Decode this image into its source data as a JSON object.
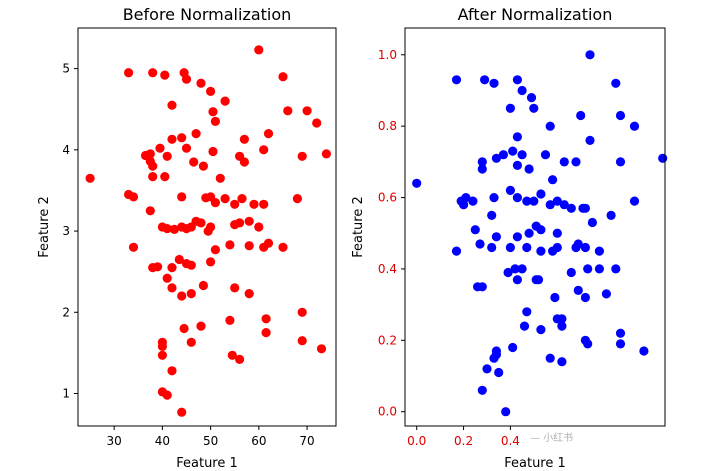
{
  "chart_data": [
    {
      "type": "scatter",
      "title": "Before Normalization",
      "xlabel": "Feature 1",
      "ylabel": "Feature 2",
      "xlim": [
        22.5,
        76.0
      ],
      "ylim": [
        0.6,
        5.5
      ],
      "xticks": [
        30,
        40,
        50,
        60,
        70
      ],
      "yticks": [
        1,
        2,
        3,
        4,
        5
      ],
      "color": "#ff0000",
      "tick_color": "#000000",
      "x": [
        33.0,
        38.0,
        40.5,
        44.5,
        45.0,
        48.0,
        50.0,
        50.5,
        60.0,
        65.0,
        42.0,
        47.0,
        51.0,
        57.0,
        66.0,
        70.0,
        72.0,
        53.0,
        62.0,
        44.0,
        48.5,
        42.0,
        74.0,
        36.5,
        37.5,
        37.5,
        38.0,
        39.5,
        41.0,
        45.0,
        46.5,
        50.5,
        52.0,
        56.0,
        57.0,
        61.0,
        69.0,
        25.0,
        38.0,
        40.5,
        44.0,
        49.0,
        50.0,
        51.0,
        53.0,
        55.0,
        56.5,
        59.0,
        61.0,
        68.0,
        33.0,
        34.0,
        37.5,
        40.0,
        41.0,
        42.5,
        44.0,
        45.0,
        46.0,
        47.0,
        48.0,
        49.5,
        50.0,
        55.0,
        56.0,
        58.0,
        60.0,
        62.0,
        65.0,
        34.0,
        38.0,
        39.0,
        42.0,
        43.5,
        45.0,
        46.0,
        50.0,
        51.0,
        54.0,
        58.0,
        61.0,
        41.0,
        42.0,
        44.0,
        46.0,
        48.5,
        55.0,
        58.0,
        61.5,
        69.0,
        40.0,
        44.5,
        48.0,
        54.0,
        61.5,
        46.0,
        40.0,
        40.0,
        69.0,
        73.0,
        54.5,
        56.0,
        40.0,
        42.0,
        41.0,
        44.0
      ],
      "y": [
        4.95,
        4.95,
        4.92,
        4.95,
        4.87,
        4.82,
        4.72,
        4.47,
        5.23,
        4.9,
        4.55,
        4.2,
        4.35,
        4.13,
        4.48,
        4.48,
        4.33,
        4.6,
        4.2,
        4.15,
        3.8,
        4.13,
        3.95,
        3.93,
        3.95,
        3.86,
        3.8,
        4.02,
        3.92,
        4.02,
        3.85,
        3.98,
        3.65,
        3.92,
        3.85,
        4.0,
        3.92,
        3.65,
        3.67,
        3.67,
        3.42,
        3.41,
        3.42,
        3.35,
        3.4,
        3.33,
        3.4,
        3.33,
        3.33,
        3.4,
        3.45,
        3.42,
        3.25,
        3.05,
        3.03,
        3.02,
        3.05,
        3.03,
        3.05,
        3.12,
        3.1,
        3.0,
        3.05,
        3.08,
        3.1,
        3.12,
        3.05,
        2.85,
        2.8,
        2.8,
        2.55,
        2.56,
        2.55,
        2.65,
        2.6,
        2.58,
        2.62,
        2.77,
        2.83,
        2.82,
        2.8,
        2.42,
        2.3,
        2.2,
        2.23,
        2.33,
        2.3,
        2.23,
        1.92,
        2.0,
        1.63,
        1.8,
        1.83,
        1.9,
        1.75,
        1.63,
        1.58,
        1.47,
        1.65,
        1.55,
        1.47,
        1.42,
        1.02,
        1.28,
        0.98,
        0.77
      ]
    },
    {
      "type": "scatter",
      "title": "After Normalization",
      "xlabel": "Feature 1",
      "ylabel": "Feature 2",
      "xlim": [
        -0.05,
        1.06
      ],
      "ylim": [
        -0.04,
        1.075
      ],
      "xticks": [
        0.0,
        0.2,
        0.4
      ],
      "xtick_labels": [
        "0.0",
        "0.2",
        "0.4"
      ],
      "yticks": [
        0.0,
        0.2,
        0.4,
        0.6,
        0.8,
        1.0
      ],
      "ytick_labels": [
        "0.0",
        "0.2",
        "0.4",
        "0.6",
        "0.8",
        "1.0"
      ],
      "color": "#0000ff",
      "tick_color": "#dd0000",
      "watermark": "— 小红书",
      "x": [
        0.17,
        0.29,
        0.33,
        0.43,
        0.45,
        0.49,
        0.5,
        0.74,
        0.85,
        0.4,
        0.43,
        0.57,
        0.7,
        0.87,
        0.93,
        0.45,
        0.63,
        0.87,
        1.05,
        0.28,
        0.28,
        0.34,
        0.37,
        0.41,
        0.43,
        0.48,
        0.55,
        0.58,
        0.68,
        0.74,
        0.21,
        0.33,
        0.4,
        0.43,
        0.47,
        0.5,
        0.53,
        0.57,
        0.6,
        0.63,
        0.66,
        0.71,
        0.93,
        0.0,
        0.19,
        0.2,
        0.24,
        0.32,
        0.43,
        0.48,
        0.51,
        0.53,
        0.6,
        0.69,
        0.72,
        0.75,
        0.83,
        0.25,
        0.27,
        0.34,
        0.4,
        0.47,
        0.53,
        0.58,
        0.6,
        0.68,
        0.72,
        0.78,
        0.17,
        0.32,
        0.42,
        0.45,
        0.52,
        0.66,
        0.73,
        0.78,
        0.85,
        0.26,
        0.28,
        0.39,
        0.43,
        0.51,
        0.59,
        0.69,
        0.72,
        0.81,
        0.47,
        0.62,
        0.62,
        0.72,
        0.73,
        0.87,
        0.34,
        0.41,
        0.46,
        0.53,
        0.6,
        0.87,
        0.57,
        0.62,
        0.97,
        0.34,
        0.33,
        0.3,
        0.35,
        0.28,
        0.38
      ],
      "y": [
        0.93,
        0.93,
        0.92,
        0.93,
        0.9,
        0.88,
        0.85,
        1.0,
        0.92,
        0.85,
        0.77,
        0.8,
        0.83,
        0.83,
        0.8,
        0.72,
        0.7,
        0.7,
        0.71,
        0.7,
        0.68,
        0.71,
        0.72,
        0.73,
        0.69,
        0.68,
        0.72,
        0.65,
        0.7,
        0.76,
        0.6,
        0.6,
        0.62,
        0.6,
        0.59,
        0.59,
        0.61,
        0.58,
        0.59,
        0.58,
        0.57,
        0.57,
        0.59,
        0.64,
        0.59,
        0.58,
        0.59,
        0.55,
        0.49,
        0.5,
        0.52,
        0.51,
        0.5,
        0.47,
        0.57,
        0.53,
        0.55,
        0.51,
        0.47,
        0.49,
        0.46,
        0.46,
        0.45,
        0.45,
        0.46,
        0.46,
        0.46,
        0.45,
        0.45,
        0.46,
        0.4,
        0.4,
        0.37,
        0.39,
        0.4,
        0.4,
        0.4,
        0.35,
        0.35,
        0.39,
        0.37,
        0.37,
        0.32,
        0.34,
        0.32,
        0.33,
        0.28,
        0.26,
        0.24,
        0.2,
        0.19,
        0.19,
        0.16,
        0.18,
        0.24,
        0.23,
        0.26,
        0.22,
        0.15,
        0.14,
        0.17,
        0.17,
        0.15,
        0.12,
        0.11,
        0.06,
        0.0
      ]
    }
  ]
}
